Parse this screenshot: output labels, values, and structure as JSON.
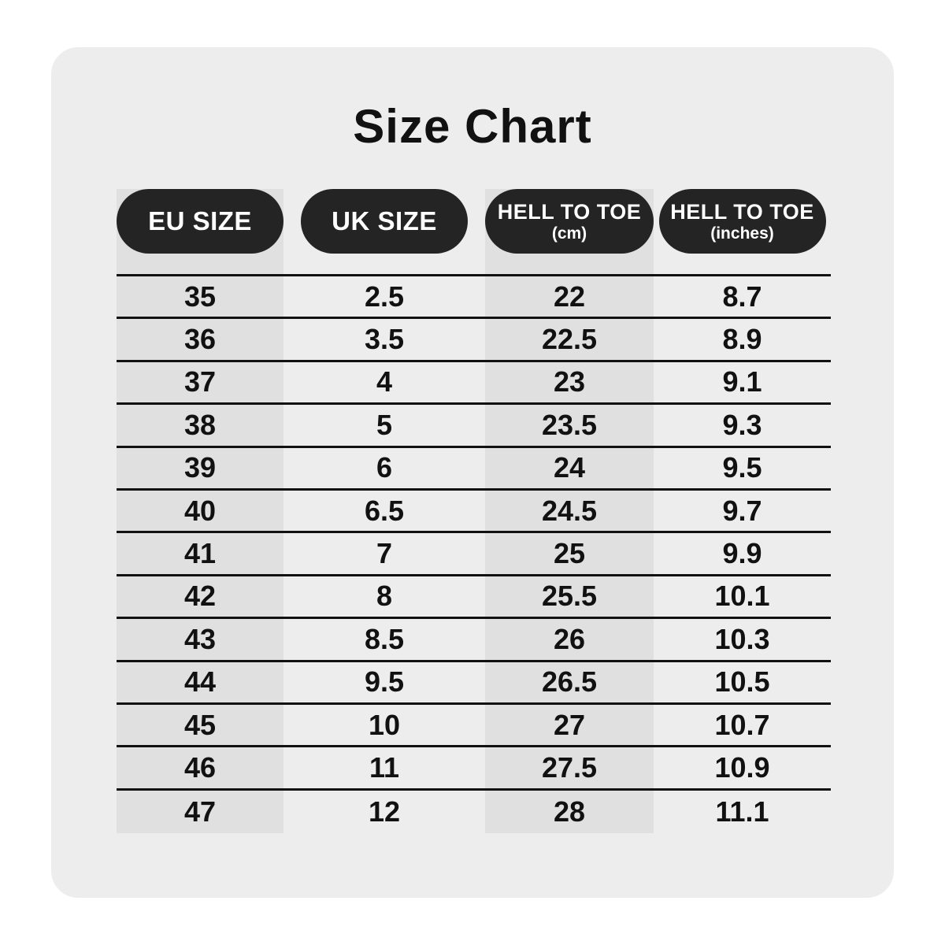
{
  "title": "Size Chart",
  "chart_data": {
    "type": "table",
    "title": "Size Chart",
    "columns": [
      {
        "label": "EU SIZE"
      },
      {
        "label": "UK SIZE"
      },
      {
        "label": "HELL TO TOE",
        "sub": "(cm)"
      },
      {
        "label": "HELL TO TOE",
        "sub": "(inches)"
      }
    ],
    "rows": [
      [
        "35",
        "2.5",
        "22",
        "8.7"
      ],
      [
        "36",
        "3.5",
        "22.5",
        "8.9"
      ],
      [
        "37",
        "4",
        "23",
        "9.1"
      ],
      [
        "38",
        "5",
        "23.5",
        "9.3"
      ],
      [
        "39",
        "6",
        "24",
        "9.5"
      ],
      [
        "40",
        "6.5",
        "24.5",
        "9.7"
      ],
      [
        "41",
        "7",
        "25",
        "9.9"
      ],
      [
        "42",
        "8",
        "25.5",
        "10.1"
      ],
      [
        "43",
        "8.5",
        "26",
        "10.3"
      ],
      [
        "44",
        "9.5",
        "26.5",
        "10.5"
      ],
      [
        "45",
        "10",
        "27",
        "10.7"
      ],
      [
        "46",
        "11",
        "27.5",
        "10.9"
      ],
      [
        "47",
        "12",
        "28",
        "11.1"
      ]
    ],
    "layout_hints": {
      "striped_columns": [
        0,
        2
      ],
      "row_divider": "solid black",
      "last_row_divider": false
    }
  },
  "colors": {
    "page_bg": "#FFFFFF",
    "card_bg": "#EDEDED",
    "stripe_bg": "#E0E0E0",
    "pill_bg": "#242424",
    "pill_text": "#FFFFFF",
    "line": "#111111",
    "text": "#111111"
  }
}
